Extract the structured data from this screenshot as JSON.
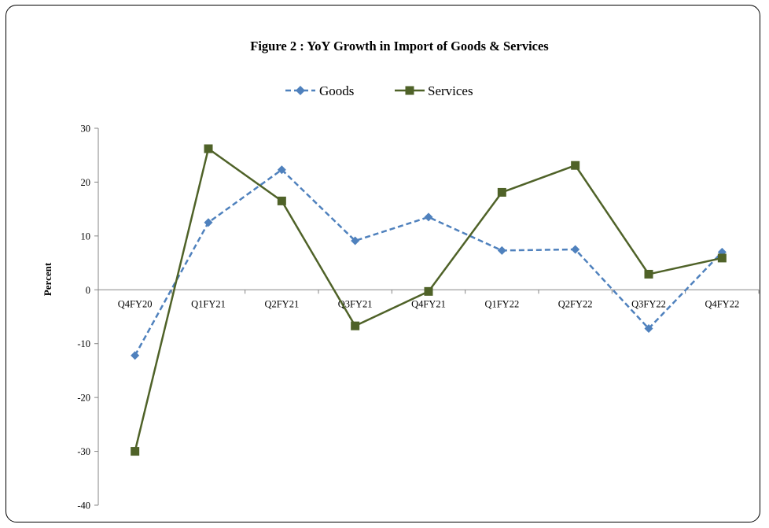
{
  "chart_data": {
    "type": "line",
    "title": "Figure 2 : YoY Growth in Import  of Goods & Services",
    "xlabel": "",
    "ylabel": "Percent",
    "categories": [
      "Q4FY20",
      "Q1FY21",
      "Q2FY21",
      "Q3FY21",
      "Q4FY21",
      "Q1FY22",
      "Q2FY22",
      "Q3FY22",
      "Q4FY22"
    ],
    "ylim": [
      -40,
      30
    ],
    "yticks": [
      30,
      20,
      10,
      0,
      -10,
      -20,
      -30,
      -40
    ],
    "legend_position": "top",
    "grid": false,
    "series": [
      {
        "name": "Goods",
        "values": [
          -12.2,
          12.5,
          22.3,
          9.1,
          13.5,
          7.3,
          7.5,
          -7.2,
          7.0
        ],
        "color": "#4F81BD",
        "line_style": "dashed",
        "marker": "diamond"
      },
      {
        "name": "Services",
        "values": [
          -30.0,
          26.2,
          16.5,
          -6.7,
          -0.3,
          18.1,
          23.1,
          2.9,
          5.9
        ],
        "color": "#4F6228",
        "line_style": "solid",
        "marker": "square"
      }
    ]
  }
}
